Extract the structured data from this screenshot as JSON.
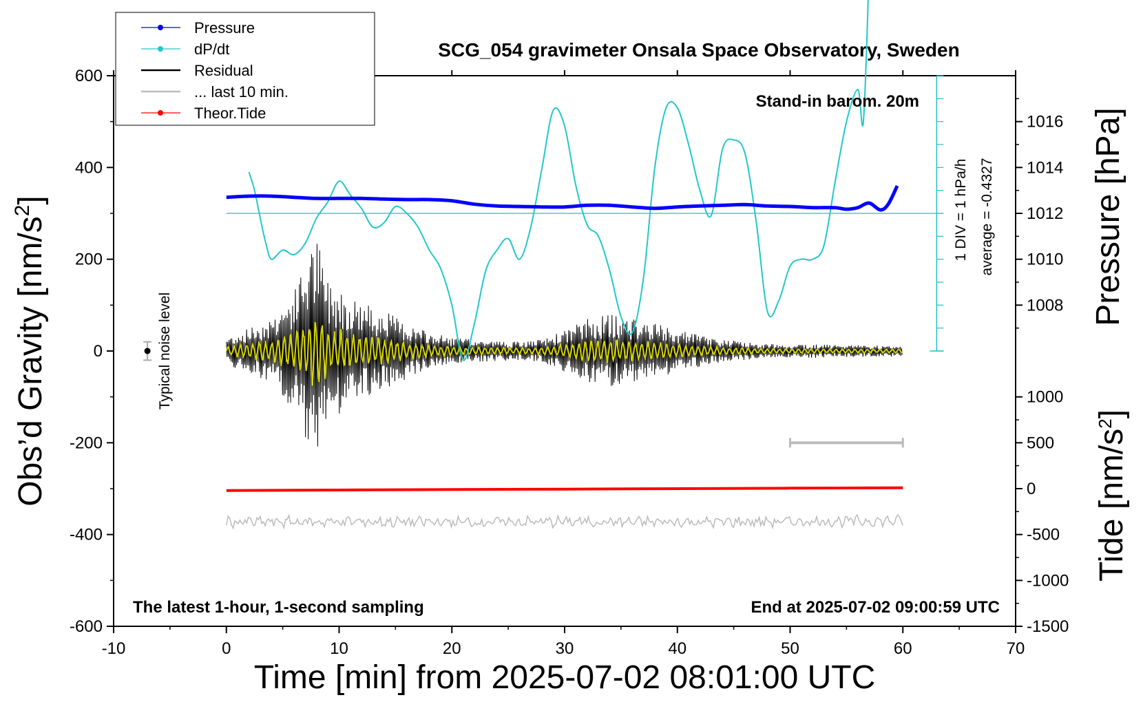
{
  "chart_data": {
    "type": "line",
    "title": "SCG_054 gravimeter Onsala Space Observatory, Sweden",
    "xlabel": "Time [min] from 2025-07-02 08:01:00 UTC",
    "ylabel_left": "Obs’d Gravity [nm/s²]",
    "ylabel_left_main": "Obs’d Gravity [nm/s",
    "ylabel_right_pressure": "Pressure [hPa]",
    "ylabel_right_tide_main": "Tide [nm/s",
    "superscript": "2",
    "closing_bracket": "]",
    "xlim": [
      -10,
      70
    ],
    "ylim_left": [
      -600,
      600
    ],
    "ylim_pressure": [
      1006,
      1018
    ],
    "ylim_tide": [
      -1500,
      1000
    ],
    "x_ticks": [
      "-10",
      "0",
      "10",
      "20",
      "30",
      "40",
      "50",
      "60",
      "70"
    ],
    "y_left_ticks": [
      "600",
      "400",
      "200",
      "0",
      "-200",
      "-400",
      "-600"
    ],
    "pressure_ticks": [
      "1016",
      "1014",
      "1012",
      "1010",
      "1008"
    ],
    "tide_ticks": [
      "1000",
      "500",
      "0",
      "-500",
      "-1000",
      "-1500"
    ],
    "legend": [
      {
        "label": "Pressure",
        "color": "#0000ff"
      },
      {
        "label": "dP/dt",
        "color": "#00c0c0"
      },
      {
        "label": "Residual",
        "color": "#000000"
      },
      {
        "label": "... last 10 min.",
        "color": "#bbbbbb"
      },
      {
        "label": "Theor.Tide",
        "color": "#ff0000"
      }
    ],
    "annotations": {
      "barometer": "Stand-in barom. 20m",
      "div": "1 DIV = 1 hPa/h",
      "average": "average = -0.4327",
      "noise": "Typical noise level",
      "bottom_left": "The latest 1-hour, 1-second sampling",
      "bottom_right": "End at 2025-07-02 09:00:59 UTC"
    },
    "series": [
      {
        "name": "Pressure",
        "axis": "pressure_hPa",
        "color": "#0000ff",
        "x": [
          0,
          2,
          4,
          6,
          8,
          10,
          12,
          14,
          16,
          18,
          20,
          22,
          24,
          26,
          28,
          30,
          32,
          34,
          36,
          38,
          40,
          42,
          44,
          46,
          48,
          50,
          52,
          54,
          55,
          56,
          57,
          58,
          58.7,
          59.5
        ],
        "values": [
          1012.7,
          1012.75,
          1012.75,
          1012.7,
          1012.65,
          1012.65,
          1012.65,
          1012.62,
          1012.6,
          1012.6,
          1012.55,
          1012.4,
          1012.32,
          1012.3,
          1012.28,
          1012.28,
          1012.35,
          1012.35,
          1012.28,
          1012.22,
          1012.28,
          1012.32,
          1012.35,
          1012.38,
          1012.32,
          1012.3,
          1012.25,
          1012.25,
          1012.18,
          1012.25,
          1012.45,
          1012.15,
          1012.4,
          1013.2
        ]
      },
      {
        "name": "dP/dt",
        "axis": "dPdt_div",
        "color": "#00c0c0",
        "x": [
          2,
          2.5,
          3,
          3.5,
          4,
          5,
          6,
          7,
          8,
          9,
          10,
          11,
          12,
          13,
          14,
          15,
          16,
          17,
          18,
          19,
          20,
          21,
          22,
          23,
          24,
          25,
          26,
          27,
          28,
          29,
          30,
          31,
          32,
          33,
          34,
          35,
          36,
          37,
          38,
          39,
          40,
          41,
          42,
          43,
          44,
          45,
          46,
          47,
          48,
          49,
          50,
          51,
          52,
          53,
          54,
          55,
          56,
          56.5,
          57
        ],
        "values": [
          1.8,
          1.0,
          -0.2,
          -1.3,
          -2.0,
          -1.6,
          -1.8,
          -1.3,
          -0.2,
          0.5,
          1.4,
          0.8,
          0.2,
          -0.6,
          -0.4,
          0.3,
          0.0,
          -0.6,
          -1.6,
          -2.4,
          -4.0,
          -6.4,
          -4.8,
          -2.5,
          -1.6,
          -1.1,
          -2.0,
          -0.6,
          2.0,
          4.5,
          3.8,
          1.2,
          -0.5,
          -1.0,
          -2.5,
          -4.5,
          -5.2,
          -2.8,
          2.0,
          4.6,
          4.6,
          3.0,
          1.0,
          -0.1,
          2.8,
          3.2,
          2.6,
          -0.4,
          -4.3,
          -3.8,
          -2.3,
          -2.0,
          -2.0,
          -1.4,
          1.4,
          4.0,
          5.4,
          4.0,
          10.5
        ]
      },
      {
        "name": "Residual",
        "axis": "gravity_nm_s2",
        "color": "#000000",
        "x": [
          0,
          2,
          4,
          6,
          7,
          8,
          9,
          10,
          11,
          12,
          13,
          14,
          16,
          18,
          20,
          22,
          24,
          26,
          28,
          30,
          32,
          34,
          36,
          38,
          40,
          42,
          44,
          46,
          48,
          50,
          52,
          54,
          56,
          58,
          60
        ],
        "amplitude": [
          30,
          50,
          75,
          130,
          200,
          250,
          160,
          140,
          120,
          110,
          95,
          90,
          60,
          40,
          30,
          25,
          22,
          20,
          25,
          45,
          70,
          80,
          70,
          60,
          45,
          35,
          25,
          20,
          15,
          15,
          15,
          13,
          13,
          12,
          12
        ]
      },
      {
        "name": "... last 10 min.",
        "axis": "gravity_nm_s2",
        "color": "#bbbbbb",
        "x": [
          0,
          10,
          20,
          30,
          40,
          50,
          60
        ],
        "values": [
          -373,
          -372,
          -373,
          -372,
          -373,
          -372,
          -370
        ]
      },
      {
        "name": "Theor.Tide",
        "axis": "tide_nm_s2",
        "color": "#ff0000",
        "x": [
          0,
          10,
          20,
          30,
          40,
          50,
          60
        ],
        "values": [
          -20,
          -15,
          -10,
          -5,
          0,
          5,
          10
        ]
      }
    ],
    "last_10_min_bar": {
      "x": [
        50,
        60
      ],
      "y_gravity": -200
    },
    "noise_marker": {
      "x": -7,
      "y_gravity": 0,
      "err": 20
    },
    "zero_line_pressure": 1012
  }
}
